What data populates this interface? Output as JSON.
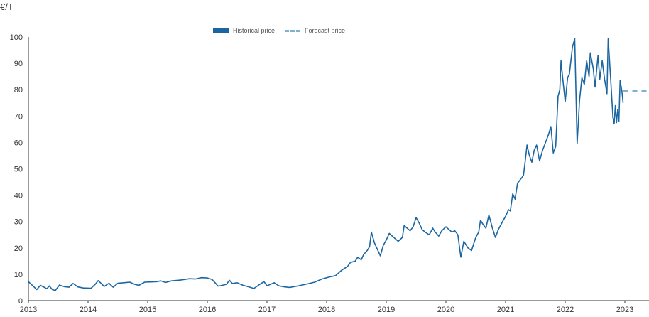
{
  "chart_data": {
    "type": "line",
    "ylabel": "€/T",
    "xlabel": "",
    "title": "",
    "xlim": [
      2013,
      2023
    ],
    "ylim": [
      0,
      100
    ],
    "x_ticks": [
      "2013",
      "2014",
      "2015",
      "2016",
      "2017",
      "2018",
      "2019",
      "2020",
      "2021",
      "2022",
      "2023"
    ],
    "y_ticks": [
      "0",
      "10",
      "20",
      "30",
      "40",
      "50",
      "60",
      "70",
      "80",
      "90",
      "100"
    ],
    "legend_position": "top-center",
    "series": [
      {
        "name": "Historical price",
        "color": "#1b66a0",
        "style": "solid",
        "points": [
          [
            2013.0,
            7.2
          ],
          [
            2013.08,
            5.5
          ],
          [
            2013.14,
            4.2
          ],
          [
            2013.2,
            5.8
          ],
          [
            2013.27,
            5.0
          ],
          [
            2013.31,
            4.5
          ],
          [
            2013.35,
            5.6
          ],
          [
            2013.4,
            4.2
          ],
          [
            2013.45,
            3.8
          ],
          [
            2013.52,
            5.9
          ],
          [
            2013.6,
            5.3
          ],
          [
            2013.68,
            5.1
          ],
          [
            2013.75,
            6.5
          ],
          [
            2013.83,
            5.2
          ],
          [
            2013.92,
            4.8
          ],
          [
            2014.05,
            4.7
          ],
          [
            2014.12,
            6.2
          ],
          [
            2014.17,
            7.6
          ],
          [
            2014.27,
            5.4
          ],
          [
            2014.35,
            6.6
          ],
          [
            2014.42,
            5.1
          ],
          [
            2014.5,
            6.6
          ],
          [
            2014.6,
            6.8
          ],
          [
            2014.7,
            7.0
          ],
          [
            2014.78,
            6.2
          ],
          [
            2014.85,
            5.8
          ],
          [
            2014.95,
            7.0
          ],
          [
            2015.05,
            7.1
          ],
          [
            2015.15,
            7.2
          ],
          [
            2015.22,
            7.5
          ],
          [
            2015.3,
            6.9
          ],
          [
            2015.4,
            7.5
          ],
          [
            2015.55,
            7.8
          ],
          [
            2015.7,
            8.3
          ],
          [
            2015.8,
            8.2
          ],
          [
            2015.9,
            8.7
          ],
          [
            2016.0,
            8.6
          ],
          [
            2016.08,
            8.0
          ],
          [
            2016.13,
            6.8
          ],
          [
            2016.18,
            5.5
          ],
          [
            2016.25,
            5.8
          ],
          [
            2016.32,
            6.2
          ],
          [
            2016.37,
            7.7
          ],
          [
            2016.42,
            6.5
          ],
          [
            2016.5,
            6.8
          ],
          [
            2016.6,
            5.8
          ],
          [
            2016.7,
            5.2
          ],
          [
            2016.78,
            4.6
          ],
          [
            2016.9,
            6.5
          ],
          [
            2016.95,
            7.2
          ],
          [
            2017.0,
            5.6
          ],
          [
            2017.07,
            6.3
          ],
          [
            2017.12,
            6.8
          ],
          [
            2017.2,
            5.6
          ],
          [
            2017.3,
            5.2
          ],
          [
            2017.38,
            5.0
          ],
          [
            2017.5,
            5.5
          ],
          [
            2017.65,
            6.2
          ],
          [
            2017.8,
            7.0
          ],
          [
            2017.92,
            8.2
          ],
          [
            2018.05,
            9.0
          ],
          [
            2018.15,
            9.5
          ],
          [
            2018.25,
            11.5
          ],
          [
            2018.35,
            13.0
          ],
          [
            2018.4,
            14.5
          ],
          [
            2018.48,
            15.0
          ],
          [
            2018.52,
            16.5
          ],
          [
            2018.58,
            15.5
          ],
          [
            2018.62,
            17.5
          ],
          [
            2018.68,
            19.0
          ],
          [
            2018.72,
            20.5
          ],
          [
            2018.75,
            26.0
          ],
          [
            2018.8,
            22.0
          ],
          [
            2018.85,
            19.5
          ],
          [
            2018.9,
            17.0
          ],
          [
            2018.95,
            21.0
          ],
          [
            2019.0,
            23.0
          ],
          [
            2019.05,
            25.5
          ],
          [
            2019.1,
            24.5
          ],
          [
            2019.15,
            23.5
          ],
          [
            2019.2,
            22.5
          ],
          [
            2019.27,
            24.0
          ],
          [
            2019.3,
            28.5
          ],
          [
            2019.35,
            27.5
          ],
          [
            2019.4,
            26.5
          ],
          [
            2019.45,
            28.0
          ],
          [
            2019.5,
            31.5
          ],
          [
            2019.55,
            29.5
          ],
          [
            2019.6,
            27.0
          ],
          [
            2019.65,
            26.0
          ],
          [
            2019.72,
            25.0
          ],
          [
            2019.78,
            27.5
          ],
          [
            2019.82,
            26.0
          ],
          [
            2019.88,
            24.5
          ],
          [
            2019.93,
            26.5
          ],
          [
            2020.0,
            28.0
          ],
          [
            2020.05,
            27.0
          ],
          [
            2020.1,
            26.0
          ],
          [
            2020.15,
            26.5
          ],
          [
            2020.2,
            25.0
          ],
          [
            2020.25,
            16.5
          ],
          [
            2020.3,
            22.5
          ],
          [
            2020.37,
            20.0
          ],
          [
            2020.43,
            19.0
          ],
          [
            2020.5,
            24.0
          ],
          [
            2020.55,
            26.0
          ],
          [
            2020.58,
            30.5
          ],
          [
            2020.62,
            29.0
          ],
          [
            2020.67,
            27.5
          ],
          [
            2020.72,
            32.5
          ],
          [
            2020.78,
            27.5
          ],
          [
            2020.83,
            24.0
          ],
          [
            2020.88,
            27.0
          ],
          [
            2020.95,
            30.0
          ],
          [
            2021.0,
            32.0
          ],
          [
            2021.05,
            34.5
          ],
          [
            2021.08,
            34.0
          ],
          [
            2021.12,
            40.5
          ],
          [
            2021.16,
            38.5
          ],
          [
            2021.2,
            44.5
          ],
          [
            2021.25,
            46.0
          ],
          [
            2021.3,
            47.5
          ],
          [
            2021.33,
            53.0
          ],
          [
            2021.36,
            59.0
          ],
          [
            2021.4,
            55.0
          ],
          [
            2021.44,
            52.5
          ],
          [
            2021.48,
            57.0
          ],
          [
            2021.52,
            59.0
          ],
          [
            2021.57,
            53.0
          ],
          [
            2021.62,
            57.0
          ],
          [
            2021.67,
            60.0
          ],
          [
            2021.72,
            63.0
          ],
          [
            2021.76,
            66.0
          ],
          [
            2021.8,
            56.0
          ],
          [
            2021.84,
            58.5
          ],
          [
            2021.88,
            77.5
          ],
          [
            2021.91,
            80.0
          ],
          [
            2021.93,
            91.0
          ],
          [
            2021.96,
            84.0
          ],
          [
            2022.0,
            75.5
          ],
          [
            2022.04,
            84.5
          ],
          [
            2022.07,
            86.0
          ],
          [
            2022.12,
            96.0
          ],
          [
            2022.16,
            99.5
          ],
          [
            2022.2,
            59.5
          ],
          [
            2022.24,
            76.0
          ],
          [
            2022.28,
            84.5
          ],
          [
            2022.32,
            82.0
          ],
          [
            2022.36,
            91.0
          ],
          [
            2022.4,
            85.0
          ],
          [
            2022.42,
            94.0
          ],
          [
            2022.47,
            88.0
          ],
          [
            2022.5,
            81.0
          ],
          [
            2022.55,
            93.0
          ],
          [
            2022.58,
            84.0
          ],
          [
            2022.62,
            91.0
          ],
          [
            2022.66,
            84.0
          ],
          [
            2022.7,
            78.5
          ],
          [
            2022.72,
            99.5
          ],
          [
            2022.76,
            85.0
          ],
          [
            2022.8,
            69.5
          ],
          [
            2022.82,
            67.0
          ],
          [
            2022.84,
            74.0
          ],
          [
            2022.86,
            67.5
          ],
          [
            2022.88,
            72.5
          ],
          [
            2022.9,
            68.0
          ],
          [
            2022.92,
            83.5
          ],
          [
            2022.95,
            79.5
          ],
          [
            2022.97,
            75.0
          ]
        ]
      },
      {
        "name": "Forecast price",
        "color": "#7fb3cc",
        "style": "dashed",
        "points": [
          [
            2022.97,
            79.5
          ],
          [
            2023.48,
            79.5
          ]
        ]
      }
    ]
  }
}
